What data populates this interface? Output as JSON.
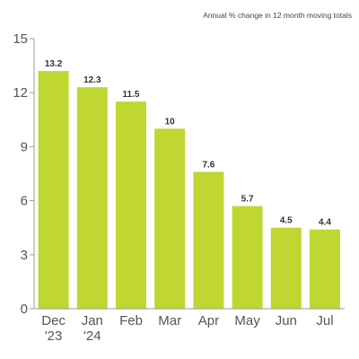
{
  "chart_data": {
    "type": "bar",
    "subtitle": "Annual % change in 12 month moving totals",
    "categories": [
      [
        "Dec",
        "'23"
      ],
      [
        "Jan",
        "'24"
      ],
      [
        "Feb"
      ],
      [
        "Mar"
      ],
      [
        "Apr"
      ],
      [
        "May"
      ],
      [
        "Jun"
      ],
      [
        "Jul"
      ]
    ],
    "values": [
      13.2,
      12.3,
      11.5,
      10,
      7.6,
      5.7,
      4.5,
      4.4
    ],
    "data_labels": [
      "13.2",
      "12.3",
      "11.5",
      "10",
      "7.6",
      "5.7",
      "4.5",
      "4.4"
    ],
    "ylim": [
      0,
      15
    ],
    "yticks": [
      0,
      3,
      6,
      9,
      12,
      15
    ],
    "ytick_labels": [
      "0",
      "3",
      "6",
      "9",
      "12",
      "15"
    ],
    "grid": false,
    "bar_color": "#bfd730",
    "axis_color": "#999999"
  }
}
